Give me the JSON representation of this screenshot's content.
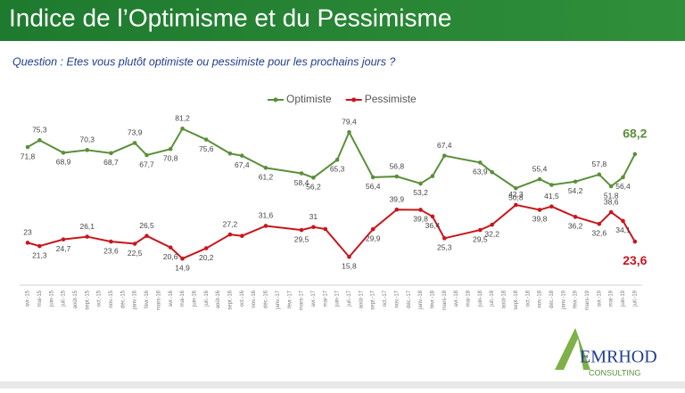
{
  "chart_data": {
    "type": "line",
    "title": "Indice de l’Optimisme et du Pessimisme",
    "subtitle": "Question : Etes vous plutôt optimiste ou pessimiste pour les prochains jours ?",
    "logo": "EMRHOD",
    "logo_sub": "CONSULTING",
    "categories": [
      "avr.-15",
      "mai-15",
      "juin-15",
      "juil.-15",
      "août-15",
      "sept.-15",
      "oct.-15",
      "nov.-15",
      "déc.-15",
      "janv.-16",
      "févr.-16",
      "mars-16",
      "avr.-16",
      "mai-16",
      "juin-16",
      "juil.-16",
      "août-16",
      "sept.-16",
      "oct.-16",
      "nov.-16",
      "déc.-16",
      "janv.-17",
      "févr.-17",
      "mars-17",
      "avr.-17",
      "mai-17",
      "juin-17",
      "juil.-17",
      "août-17",
      "sept.-17",
      "oct.-17",
      "nov.-17",
      "déc.-17",
      "janv.-18",
      "févr.-18",
      "mars-18",
      "avr.-18",
      "mai-18",
      "juin-18",
      "juil.-18",
      "août-18",
      "sept.-18",
      "oct.-18",
      "nov.-18",
      "déc.-18",
      "janv.-19",
      "févr.-19",
      "mars-19",
      "avr.-19",
      "mai-19",
      "juin-19",
      "juil.-19"
    ],
    "ylim": [
      0,
      100
    ],
    "legend": "top",
    "series": [
      {
        "name": "Optimiste",
        "color": "#5b8f3a",
        "x": [
          "avr.-15",
          "mai-15",
          "juil.-15",
          "sept.-15",
          "nov.-15",
          "janv.-16",
          "févr.-16",
          "avr.-16",
          "mai-16",
          "juil.-16",
          "sept.-16",
          "oct.-16",
          "déc.-16",
          "mars-17",
          "avr.-17",
          "juin-17",
          "juil.-17",
          "sept.-17",
          "nov.-17",
          "janv.-18",
          "févr.-18",
          "mars-18",
          "juin-18",
          "juil.-18",
          "sept.-18",
          "nov.-18",
          "déc.-18",
          "févr.-19",
          "avr.-19",
          "mai-19",
          "juin-19",
          "juil.-19"
        ],
        "values": [
          71.8,
          75.3,
          68.9,
          70.3,
          68.7,
          73.9,
          67.7,
          70.8,
          81.2,
          75.6,
          68.5,
          67.4,
          61.2,
          58.4,
          56.2,
          65.3,
          79.4,
          56.4,
          56.8,
          53.2,
          57,
          67.4,
          63.9,
          59,
          50.8,
          55.4,
          52.5,
          54.2,
          57.8,
          51.8,
          56.4,
          68.2
        ],
        "value_labels": [
          "71,8",
          "75,3",
          "68,9",
          "70,3",
          "68,7",
          "73,9",
          "67,7",
          "70,8",
          "81,2",
          "75,6",
          null,
          "67,4",
          "61,2",
          "58,4",
          "56,2",
          "65,3",
          "79,4",
          "56,4",
          "56,8",
          "53,2",
          null,
          "67,4",
          "63,9",
          null,
          "50,8",
          "55,4",
          null,
          "54,2",
          "57,8",
          "51,8",
          "56,4",
          "68,2"
        ]
      },
      {
        "name": "Pessimiste",
        "color": "#c8161d",
        "x": [
          "avr.-15",
          "mai-15",
          "juil.-15",
          "sept.-15",
          "nov.-15",
          "janv.-16",
          "févr.-16",
          "avr.-16",
          "mai-16",
          "juil.-16",
          "sept.-16",
          "oct.-16",
          "déc.-16",
          "mars-17",
          "avr.-17",
          "mai-17",
          "juil.-17",
          "sept.-17",
          "nov.-17",
          "janv.-18",
          "févr.-18",
          "mars-18",
          "juin-18",
          "juil.-18",
          "sept.-18",
          "nov.-18",
          "déc.-18",
          "févr.-19",
          "avr.-19",
          "mai-19",
          "juin-19",
          "juil.-19"
        ],
        "values": [
          23,
          21.3,
          24.7,
          26.1,
          23.6,
          22.5,
          26.5,
          20.6,
          14.9,
          20.2,
          27.2,
          26.5,
          31.6,
          29.5,
          31,
          30,
          15.8,
          29.9,
          39.9,
          39.8,
          36.4,
          25.3,
          29.5,
          32.2,
          42.3,
          39.8,
          41.5,
          36.2,
          32.6,
          38.6,
          34.1,
          23.6
        ],
        "value_labels": [
          "23",
          "21,3",
          "24,7",
          "26,1",
          "23,6",
          "22,5",
          "26,5",
          "20,6",
          "14,9",
          "20,2",
          "27,2",
          null,
          "31,6",
          "29,5",
          "31",
          null,
          "15,8",
          "29,9",
          "39,9",
          "39,8",
          "36,4",
          "25,3",
          "29,5",
          "32,2",
          "42,3",
          "39,8",
          "41,5",
          "36,2",
          "32,6",
          "38,6",
          "34,1",
          "23,6"
        ]
      }
    ]
  }
}
